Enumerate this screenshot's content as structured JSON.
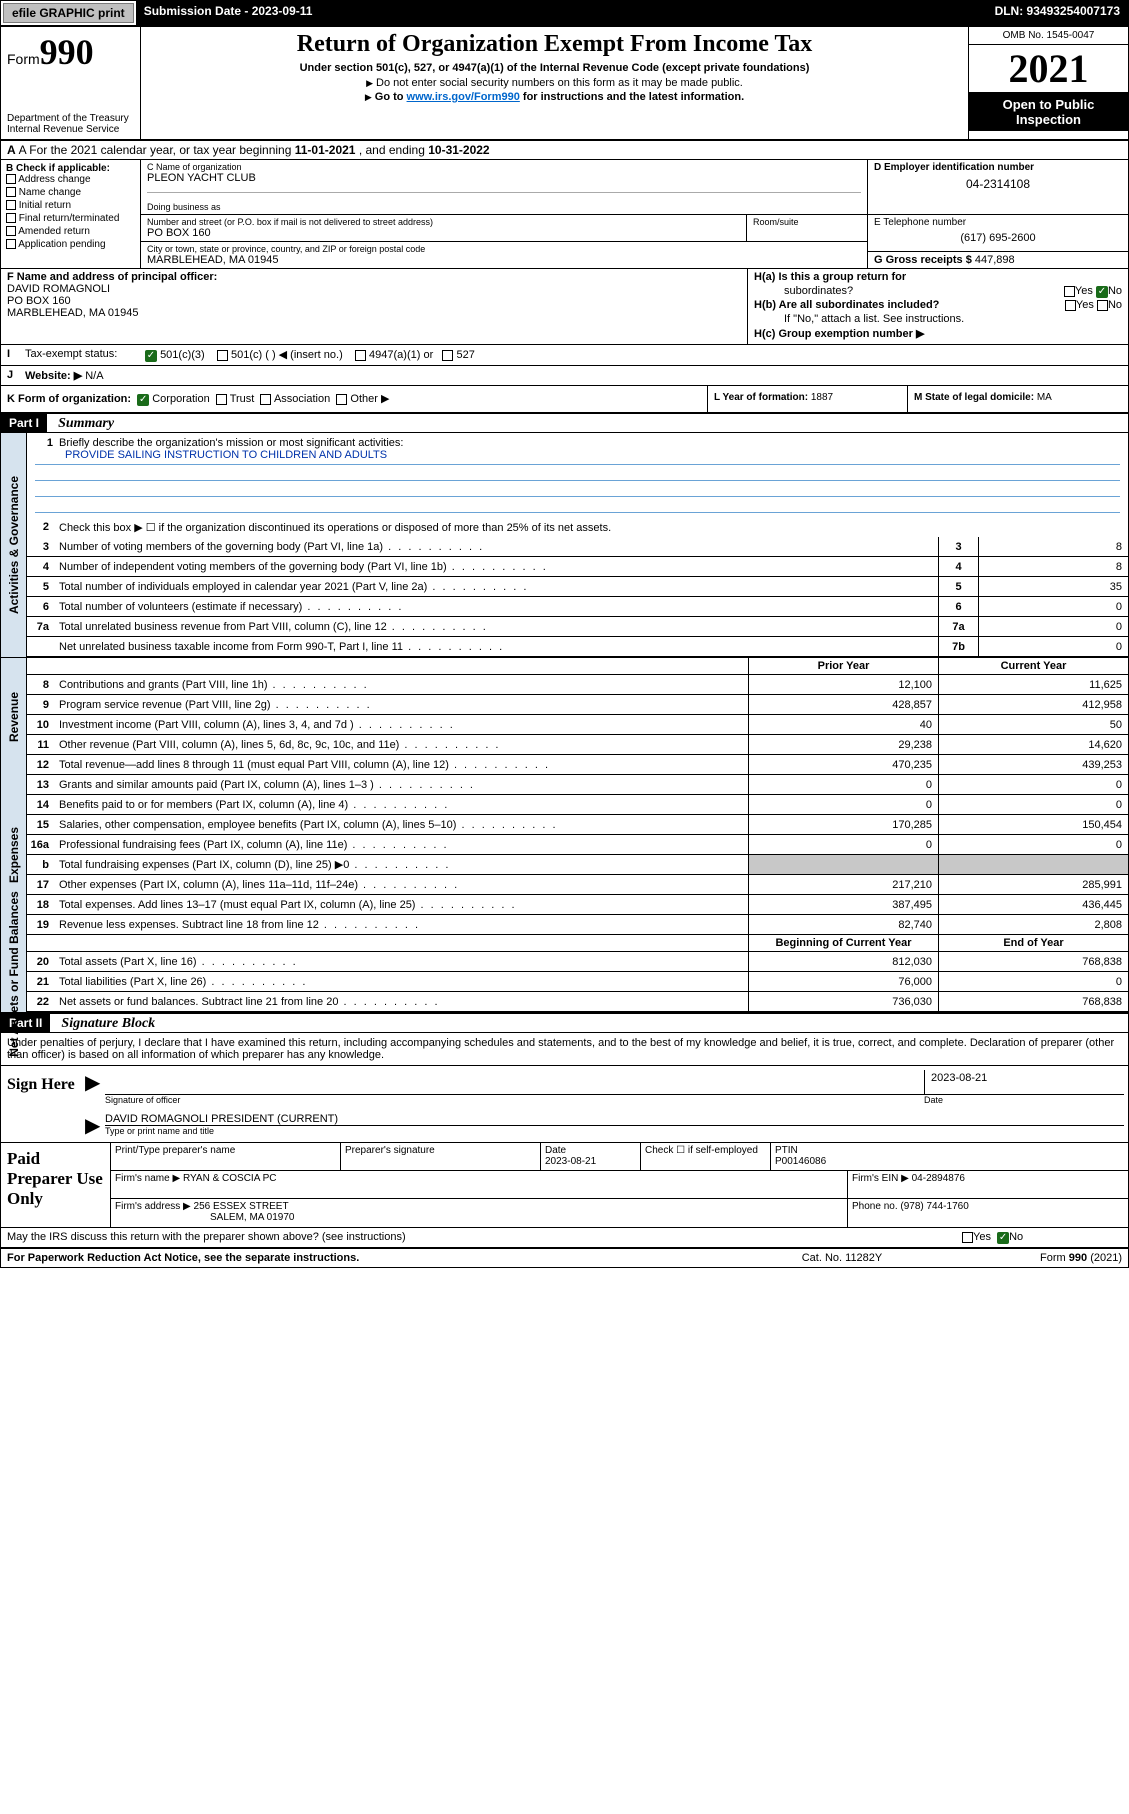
{
  "topbar": {
    "efile_btn": "efile GRAPHIC print",
    "sub_label": "Submission Date - 2023-09-11",
    "dln": "DLN: 93493254007173"
  },
  "header": {
    "form_word": "Form",
    "form_no": "990",
    "dept": "Department of the Treasury",
    "irs": "Internal Revenue Service",
    "title": "Return of Organization Exempt From Income Tax",
    "subtitle": "Under section 501(c), 527, or 4947(a)(1) of the Internal Revenue Code (except private foundations)",
    "note1": "Do not enter social security numbers on this form as it may be made public.",
    "note2_pre": "Go to ",
    "note2_link": "www.irs.gov/Form990",
    "note2_post": " for instructions and the latest information.",
    "omb": "OMB No. 1545-0047",
    "year": "2021",
    "open": "Open to Public Inspection"
  },
  "line_a": {
    "prefix": "A For the 2021 calendar year, or tax year beginning ",
    "start": "11-01-2021",
    "mid": " , and ending ",
    "end": "10-31-2022"
  },
  "col_b": {
    "header": "B Check if applicable:",
    "opts": [
      "Address change",
      "Name change",
      "Initial return",
      "Final return/terminated",
      "Amended return",
      "Application pending"
    ]
  },
  "entity": {
    "name_lbl": "C Name of organization",
    "name": "PLEON YACHT CLUB",
    "dba_lbl": "Doing business as",
    "dba": "",
    "street_lbl": "Number and street (or P.O. box if mail is not delivered to street address)",
    "room_lbl": "Room/suite",
    "street": "PO BOX 160",
    "city_lbl": "City or town, state or province, country, and ZIP or foreign postal code",
    "city": "MARBLEHEAD, MA  01945",
    "ein_lbl": "D Employer identification number",
    "ein": "04-2314108",
    "tel_lbl": "E Telephone number",
    "tel": "(617) 695-2600",
    "gross_lbl": "G Gross receipts $ ",
    "gross": "447,898"
  },
  "officer": {
    "lbl": "F Name and address of principal officer:",
    "name": "DAVID ROMAGNOLI",
    "addr1": "PO BOX 160",
    "addr2": "MARBLEHEAD, MA  01945"
  },
  "ha": {
    "a_lbl": "H(a)  Is this a group return for",
    "a_lbl2": "subordinates?",
    "b_lbl": "H(b)  Are all subordinates included?",
    "b_note": "If \"No,\" attach a list. See instructions.",
    "c_lbl": "H(c)  Group exemption number ▶",
    "yes": "Yes",
    "no": "No"
  },
  "status": {
    "i": "I",
    "lbl": "Tax-exempt status:",
    "opt1": "501(c)(3)",
    "opt2": "501(c) (   ) ◀ (insert no.)",
    "opt3": "4947(a)(1) or",
    "opt4": "527"
  },
  "website": {
    "j": "J",
    "lbl": "Website: ▶",
    "val": "N/A"
  },
  "form_org": {
    "k": "K Form of organization:",
    "opts": [
      "Corporation",
      "Trust",
      "Association",
      "Other ▶"
    ],
    "l_lbl": "L Year of formation: ",
    "l_val": "1887",
    "m_lbl": "M State of legal domicile: ",
    "m_val": "MA"
  },
  "part1": {
    "hdr": "Part I",
    "title": "Summary",
    "l1_lbl": "Briefly describe the organization's mission or most significant activities:",
    "l1_val": "PROVIDE SAILING INSTRUCTION TO CHILDREN AND ADULTS",
    "l2": "Check this box ▶ ☐  if the organization discontinued its operations or disposed of more than 25% of its net assets.",
    "rows_gov": [
      {
        "n": "3",
        "d": "Number of voting members of the governing body (Part VI, line 1a)",
        "bn": "3",
        "v": "8"
      },
      {
        "n": "4",
        "d": "Number of independent voting members of the governing body (Part VI, line 1b)",
        "bn": "4",
        "v": "8"
      },
      {
        "n": "5",
        "d": "Total number of individuals employed in calendar year 2021 (Part V, line 2a)",
        "bn": "5",
        "v": "35"
      },
      {
        "n": "6",
        "d": "Total number of volunteers (estimate if necessary)",
        "bn": "6",
        "v": "0"
      },
      {
        "n": "7a",
        "d": "Total unrelated business revenue from Part VIII, column (C), line 12",
        "bn": "7a",
        "v": "0"
      },
      {
        "n": "",
        "d": "Net unrelated business taxable income from Form 990-T, Part I, line 11",
        "bn": "7b",
        "v": "0"
      }
    ],
    "hdr_prior": "Prior Year",
    "hdr_curr": "Current Year",
    "rows_rev": [
      {
        "n": "8",
        "d": "Contributions and grants (Part VIII, line 1h)",
        "p": "12,100",
        "c": "11,625"
      },
      {
        "n": "9",
        "d": "Program service revenue (Part VIII, line 2g)",
        "p": "428,857",
        "c": "412,958"
      },
      {
        "n": "10",
        "d": "Investment income (Part VIII, column (A), lines 3, 4, and 7d )",
        "p": "40",
        "c": "50"
      },
      {
        "n": "11",
        "d": "Other revenue (Part VIII, column (A), lines 5, 6d, 8c, 9c, 10c, and 11e)",
        "p": "29,238",
        "c": "14,620"
      },
      {
        "n": "12",
        "d": "Total revenue—add lines 8 through 11 (must equal Part VIII, column (A), line 12)",
        "p": "470,235",
        "c": "439,253"
      }
    ],
    "rows_exp": [
      {
        "n": "13",
        "d": "Grants and similar amounts paid (Part IX, column (A), lines 1–3 )",
        "p": "0",
        "c": "0"
      },
      {
        "n": "14",
        "d": "Benefits paid to or for members (Part IX, column (A), line 4)",
        "p": "0",
        "c": "0"
      },
      {
        "n": "15",
        "d": "Salaries, other compensation, employee benefits (Part IX, column (A), lines 5–10)",
        "p": "170,285",
        "c": "150,454"
      },
      {
        "n": "16a",
        "d": "Professional fundraising fees (Part IX, column (A), line 11e)",
        "p": "0",
        "c": "0"
      },
      {
        "n": "b",
        "d": "Total fundraising expenses (Part IX, column (D), line 25) ▶0",
        "p": "",
        "c": "",
        "shaded": true
      },
      {
        "n": "17",
        "d": "Other expenses (Part IX, column (A), lines 11a–11d, 11f–24e)",
        "p": "217,210",
        "c": "285,991"
      },
      {
        "n": "18",
        "d": "Total expenses. Add lines 13–17 (must equal Part IX, column (A), line 25)",
        "p": "387,495",
        "c": "436,445"
      },
      {
        "n": "19",
        "d": "Revenue less expenses. Subtract line 18 from line 12",
        "p": "82,740",
        "c": "2,808"
      }
    ],
    "hdr_beg": "Beginning of Current Year",
    "hdr_end": "End of Year",
    "rows_na": [
      {
        "n": "20",
        "d": "Total assets (Part X, line 16)",
        "p": "812,030",
        "c": "768,838"
      },
      {
        "n": "21",
        "d": "Total liabilities (Part X, line 26)",
        "p": "76,000",
        "c": "0"
      },
      {
        "n": "22",
        "d": "Net assets or fund balances. Subtract line 21 from line 20",
        "p": "736,030",
        "c": "768,838"
      }
    ],
    "vert_gov": "Activities & Governance",
    "vert_rev": "Revenue",
    "vert_exp": "Expenses",
    "vert_na": "Net Assets or Fund Balances"
  },
  "part2": {
    "hdr": "Part II",
    "title": "Signature Block",
    "intro": "Under penalties of perjury, I declare that I have examined this return, including accompanying schedules and statements, and to the best of my knowledge and belief, it is true, correct, and complete. Declaration of preparer (other than officer) is based on all information of which preparer has any knowledge.",
    "sign_here": "Sign Here",
    "sig_lbl": "Signature of officer",
    "date_lbl": "Date",
    "sig_date": "2023-08-21",
    "sig_name": "DAVID ROMAGNOLI PRESIDENT (CURRENT)",
    "sig_name_lbl": "Type or print name and title",
    "paid_lbl": "Paid Preparer Use Only",
    "prep_name_lbl": "Print/Type preparer's name",
    "prep_sig_lbl": "Preparer's signature",
    "prep_date_lbl": "Date",
    "prep_date": "2023-08-21",
    "prep_check_lbl": "Check ☐ if self-employed",
    "ptin_lbl": "PTIN",
    "ptin": "P00146086",
    "firm_name_lbl": "Firm's name    ▶ ",
    "firm_name": "RYAN & COSCIA PC",
    "firm_ein_lbl": "Firm's EIN ▶ ",
    "firm_ein": "04-2894876",
    "firm_addr_lbl": "Firm's address ▶ ",
    "firm_addr1": "256 ESSEX STREET",
    "firm_addr2": "SALEM, MA  01970",
    "firm_phone_lbl": "Phone no. ",
    "firm_phone": "(978) 744-1760",
    "discuss": "May the IRS discuss this return with the preparer shown above? (see instructions)"
  },
  "footer": {
    "left": "For Paperwork Reduction Act Notice, see the separate instructions.",
    "mid": "Cat. No. 11282Y",
    "right": "Form 990 (2021)"
  }
}
